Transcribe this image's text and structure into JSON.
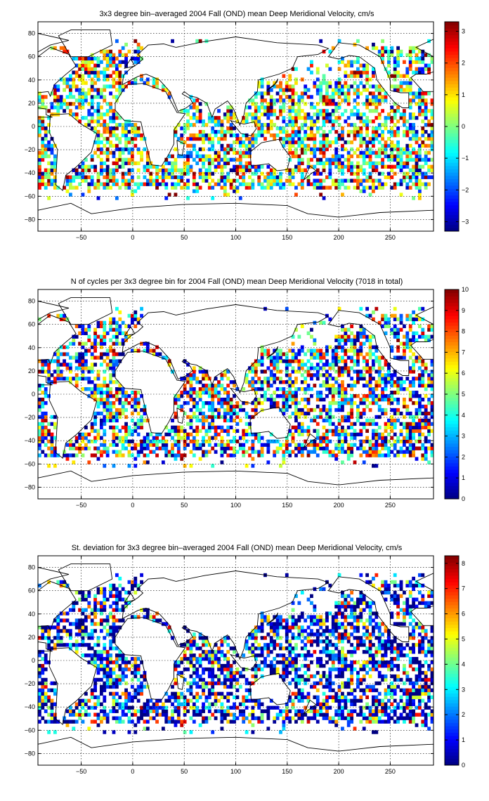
{
  "chart_data": [
    {
      "type": "heatmap",
      "title": "3x3 degree bin–averaged 2004 Fall (OND) mean Deep Meridional Velocity, cm/s",
      "xlabel": "",
      "ylabel": "",
      "xlim": [
        -92,
        292
      ],
      "ylim": [
        -90,
        90
      ],
      "x_ticks": [
        -50,
        0,
        50,
        100,
        150,
        200,
        250
      ],
      "y_ticks": [
        -80,
        -60,
        -40,
        -20,
        0,
        20,
        40,
        60,
        80
      ],
      "grid": true,
      "colorbar": {
        "colormap": "jet",
        "range": [
          -3.3,
          3.3
        ],
        "ticks": [
          -3,
          -2,
          -1,
          0,
          1,
          2,
          3
        ]
      },
      "bin_size_deg": 3,
      "seed": 11,
      "density": 0.6,
      "mode": "signed"
    },
    {
      "type": "heatmap",
      "title": "N of cycles per 3x3 degree bin for 2004 Fall (OND) mean Deep Meridional Velocity (7018 in total)",
      "xlabel": "",
      "ylabel": "",
      "xlim": [
        -92,
        292
      ],
      "ylim": [
        -90,
        90
      ],
      "x_ticks": [
        -50,
        0,
        50,
        100,
        150,
        200,
        250
      ],
      "y_ticks": [
        -80,
        -60,
        -40,
        -20,
        0,
        20,
        40,
        60,
        80
      ],
      "grid": true,
      "colorbar": {
        "colormap": "jet",
        "range": [
          0,
          10
        ],
        "ticks": [
          0,
          1,
          2,
          3,
          4,
          5,
          6,
          7,
          8,
          9,
          10
        ]
      },
      "bin_size_deg": 3,
      "seed": 11,
      "density": 0.6,
      "mode": "count"
    },
    {
      "type": "heatmap",
      "title": "St. deviation for 3x3 degree bin–averaged 2004 Fall (OND) mean Deep Meridional Velocity, cm/s",
      "xlabel": "",
      "ylabel": "",
      "xlim": [
        -92,
        292
      ],
      "ylim": [
        -90,
        90
      ],
      "x_ticks": [
        -50,
        0,
        50,
        100,
        150,
        200,
        250
      ],
      "y_ticks": [
        -80,
        -60,
        -40,
        -20,
        0,
        20,
        40,
        60,
        80
      ],
      "grid": true,
      "colorbar": {
        "colormap": "jet",
        "range": [
          0,
          8.3
        ],
        "ticks": [
          0,
          1,
          2,
          3,
          4,
          5,
          6,
          7,
          8
        ]
      },
      "bin_size_deg": 3,
      "seed": 11,
      "density": 0.6,
      "mode": "std"
    }
  ],
  "colors": {
    "frame": "#000000",
    "grid": "#000000",
    "coastline": "#000000",
    "background": "#ffffff"
  }
}
